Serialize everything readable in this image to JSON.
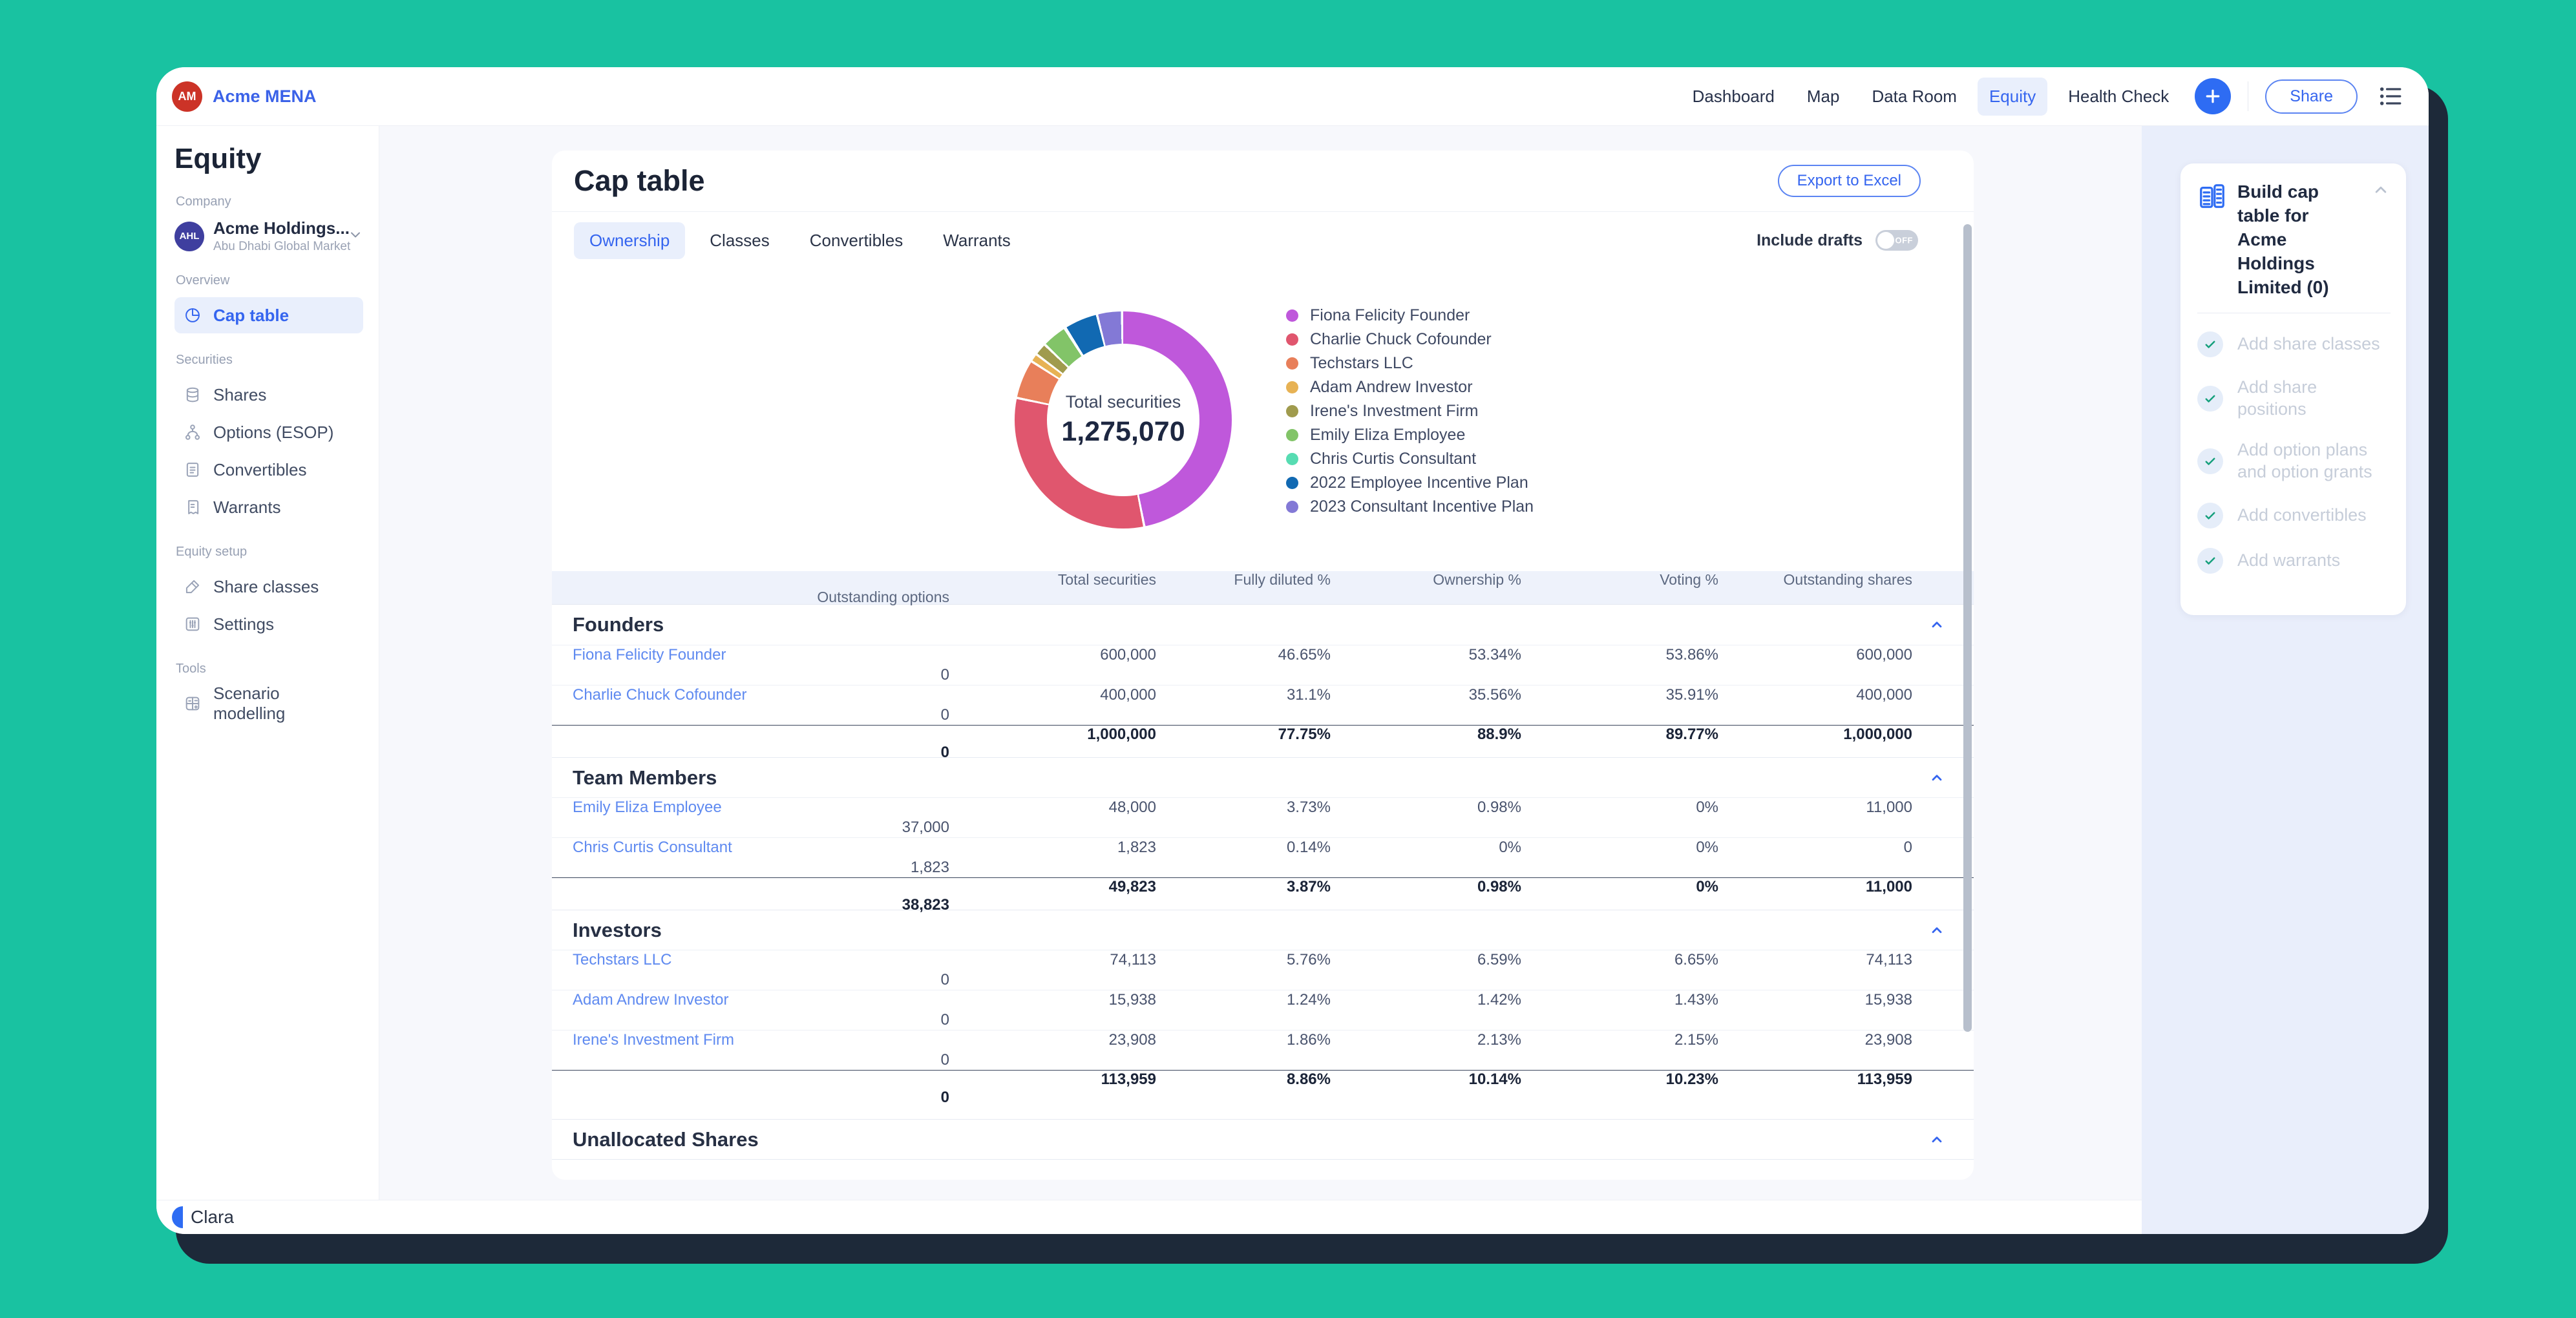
{
  "brand": {
    "initials": "AM",
    "name": "Acme MENA",
    "color": "#cc3327"
  },
  "topnav": {
    "items": [
      {
        "label": "Dashboard",
        "active": false
      },
      {
        "label": "Map",
        "active": false
      },
      {
        "label": "Data Room",
        "active": false
      },
      {
        "label": "Equity",
        "active": true
      },
      {
        "label": "Health Check",
        "active": false
      }
    ],
    "share_label": "Share"
  },
  "sidebar": {
    "title": "Equity",
    "company_label": "Company",
    "company": {
      "initials": "AHL",
      "name": "Acme Holdings...",
      "subtitle": "Abu Dhabi Global Market",
      "color": "#3f3f9f"
    },
    "sections": [
      {
        "label": "Overview",
        "items": [
          {
            "label": "Cap table",
            "icon": "pie-chart-icon",
            "active": true
          }
        ]
      },
      {
        "label": "Securities",
        "items": [
          {
            "label": "Shares",
            "icon": "shares-icon",
            "active": false
          },
          {
            "label": "Options (ESOP)",
            "icon": "options-icon",
            "active": false
          },
          {
            "label": "Convertibles",
            "icon": "convertibles-icon",
            "active": false
          },
          {
            "label": "Warrants",
            "icon": "warrants-icon",
            "active": false
          }
        ]
      },
      {
        "label": "Equity setup",
        "items": [
          {
            "label": "Share classes",
            "icon": "share-classes-icon",
            "active": false
          },
          {
            "label": "Settings",
            "icon": "settings-icon",
            "active": false
          }
        ]
      },
      {
        "label": "Tools",
        "items": [
          {
            "label": "Scenario modelling",
            "icon": "scenario-modelling-icon",
            "active": false
          }
        ]
      }
    ]
  },
  "main": {
    "title": "Cap table",
    "export_label": "Export to Excel",
    "tabs": [
      {
        "label": "Ownership",
        "active": true
      },
      {
        "label": "Classes",
        "active": false
      },
      {
        "label": "Convertibles",
        "active": false
      },
      {
        "label": "Warrants",
        "active": false
      }
    ],
    "include_drafts_label": "Include drafts",
    "toggle_state": "OFF",
    "chart_center_label": "Total securities",
    "chart_center_value": "1,275,070"
  },
  "chart_data": {
    "type": "pie",
    "title": "Total securities",
    "total_value": 1275070,
    "legend_position": "right",
    "series": [
      {
        "name": "Fiona Felicity Founder",
        "value": 600000,
        "color": "#bf58db"
      },
      {
        "name": "Charlie Chuck Cofounder",
        "value": 400000,
        "color": "#e0566e"
      },
      {
        "name": "Techstars LLC",
        "value": 74113,
        "color": "#e87f5a"
      },
      {
        "name": "Adam Andrew Investor",
        "value": 15938,
        "color": "#e7b254"
      },
      {
        "name": "Irene's Investment Firm",
        "value": 23908,
        "color": "#a09b4d"
      },
      {
        "name": "Emily Eliza Employee",
        "value": 48000,
        "color": "#82c468"
      },
      {
        "name": "Chris Curtis Consultant",
        "value": 1823,
        "color": "#57dcb2"
      },
      {
        "name": "2022 Employee Incentive Plan",
        "value": 64000,
        "color": "#1169b2"
      },
      {
        "name": "2023 Consultant Incentive Plan",
        "value": 47288,
        "color": "#8379d6"
      }
    ]
  },
  "table": {
    "columns": [
      "Total securities",
      "Fully diluted %",
      "Ownership %",
      "Voting %",
      "Outstanding shares",
      "Outstanding options"
    ],
    "groups": [
      {
        "name": "Founders",
        "rows": [
          {
            "name": "Fiona Felicity Founder",
            "values": [
              "600,000",
              "46.65%",
              "53.34%",
              "53.86%",
              "600,000",
              "0"
            ]
          },
          {
            "name": "Charlie Chuck Cofounder",
            "values": [
              "400,000",
              "31.1%",
              "35.56%",
              "35.91%",
              "400,000",
              "0"
            ]
          }
        ],
        "subtotal": [
          "1,000,000",
          "77.75%",
          "88.9%",
          "89.77%",
          "1,000,000",
          "0"
        ]
      },
      {
        "name": "Team Members",
        "rows": [
          {
            "name": "Emily Eliza Employee",
            "values": [
              "48,000",
              "3.73%",
              "0.98%",
              "0%",
              "11,000",
              "37,000"
            ]
          },
          {
            "name": "Chris Curtis Consultant",
            "values": [
              "1,823",
              "0.14%",
              "0%",
              "0%",
              "0",
              "1,823"
            ]
          }
        ],
        "subtotal": [
          "49,823",
          "3.87%",
          "0.98%",
          "0%",
          "11,000",
          "38,823"
        ]
      },
      {
        "name": "Investors",
        "rows": [
          {
            "name": "Techstars LLC",
            "values": [
              "74,113",
              "5.76%",
              "6.59%",
              "6.65%",
              "74,113",
              "0"
            ]
          },
          {
            "name": "Adam Andrew Investor",
            "values": [
              "15,938",
              "1.24%",
              "1.42%",
              "1.43%",
              "15,938",
              "0"
            ]
          },
          {
            "name": "Irene's Investment Firm",
            "values": [
              "23,908",
              "1.86%",
              "2.13%",
              "2.15%",
              "23,908",
              "0"
            ]
          }
        ],
        "subtotal": [
          "113,959",
          "8.86%",
          "10.14%",
          "10.23%",
          "113,959",
          "0"
        ]
      },
      {
        "name": "Unallocated Shares",
        "rows": [],
        "subtotal": null
      }
    ]
  },
  "assistant": {
    "title": "Build cap table for Acme Holdings Limited (0)",
    "items": [
      "Add share classes",
      "Add share positions",
      "Add option plans and option grants",
      "Add convertibles",
      "Add warrants"
    ]
  },
  "footer": {
    "brand": "Clara"
  }
}
